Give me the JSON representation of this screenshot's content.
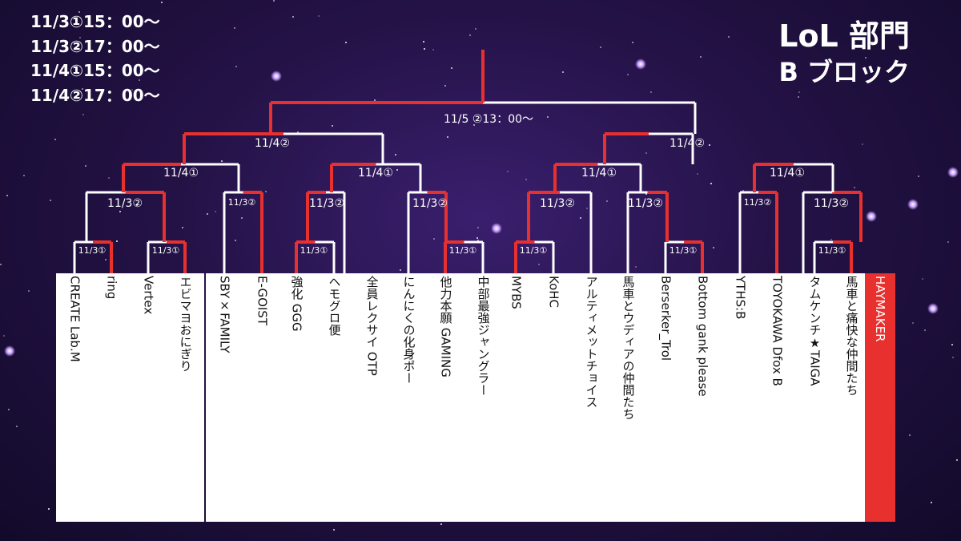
{
  "schedule": [
    "11/3①15：00～",
    "11/3②17：00～",
    "11/4①15：00～",
    "11/4②17：00～"
  ],
  "title": {
    "line1": "LoL 部門",
    "line2": "B ブロック"
  },
  "teams": [
    "CREATE Lab.M",
    "ring",
    "Vertex",
    "エビマヨおにぎり",
    "SBY×FAMILY",
    "E-GOIST",
    "強化 GGG",
    "ヘモグロ便",
    "全員レクサイ OTP",
    "にんにくの化身ポー",
    "他力本願 GAMING",
    "中部最強ジャングラー",
    "MYBS",
    "KoHC",
    "アルティメットチョイス",
    "馬車とウディアの仲間たち",
    "Berserker_Trol",
    "Bottom gank please",
    "YTHS:B",
    "TOYOKAWA Dfox B",
    "タムケンチ★TAIGA",
    "馬車と痛快な仲間たち",
    "HAYMAKER"
  ],
  "highlighted_team": "HAYMAKER",
  "round_labels": {
    "r1": "11/3①",
    "r2": "11/3②",
    "r3": "11/4①",
    "r4": "11/4②",
    "final": "11/5 ②13：00～"
  },
  "colors": {
    "line": "#ffffff",
    "winner": "#e8302e",
    "background": "#241246"
  }
}
